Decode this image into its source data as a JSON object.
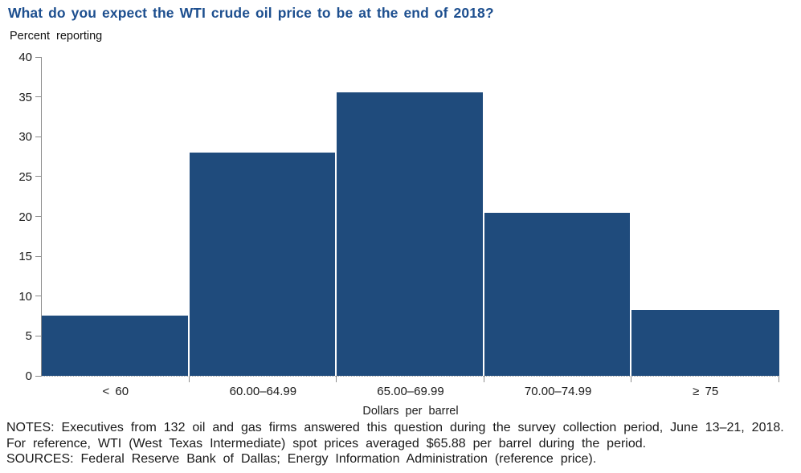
{
  "figure": {
    "title": "What do you expect the WTI crude oil price to be at the end of 2018?",
    "y_unit_label": "Percent reporting"
  },
  "chart_data": {
    "type": "bar",
    "title": "What do you expect the WTI crude oil price to be at the end of 2018?",
    "categories": [
      "< 60",
      "60.00–64.99",
      "65.00–69.99",
      "70.00–74.99",
      "≥ 75"
    ],
    "values": [
      7.6,
      28.0,
      35.6,
      20.5,
      8.3
    ],
    "xlabel": "Dollars per barrel",
    "ylabel": "Percent reporting",
    "ylim": [
      0,
      40
    ],
    "ytick_step": 5,
    "grid": false,
    "legend": "none"
  },
  "colors": {
    "title_blue": "#1d4f8f",
    "bar_navy": "#1f4b7c",
    "axis_gray": "#8c8c8c",
    "text_dark": "#1a1a1a"
  },
  "notes": {
    "line1": "NOTES: Executives from 132 oil and gas firms answered this question during the survey collection period, June 13–21, 2018.",
    "line2": "For reference, WTI (West Texas Intermediate) spot prices averaged $65.88 per barrel during the period.",
    "line3": "SOURCES: Federal Reserve Bank of Dallas; Energy Information Administration (reference price)."
  }
}
